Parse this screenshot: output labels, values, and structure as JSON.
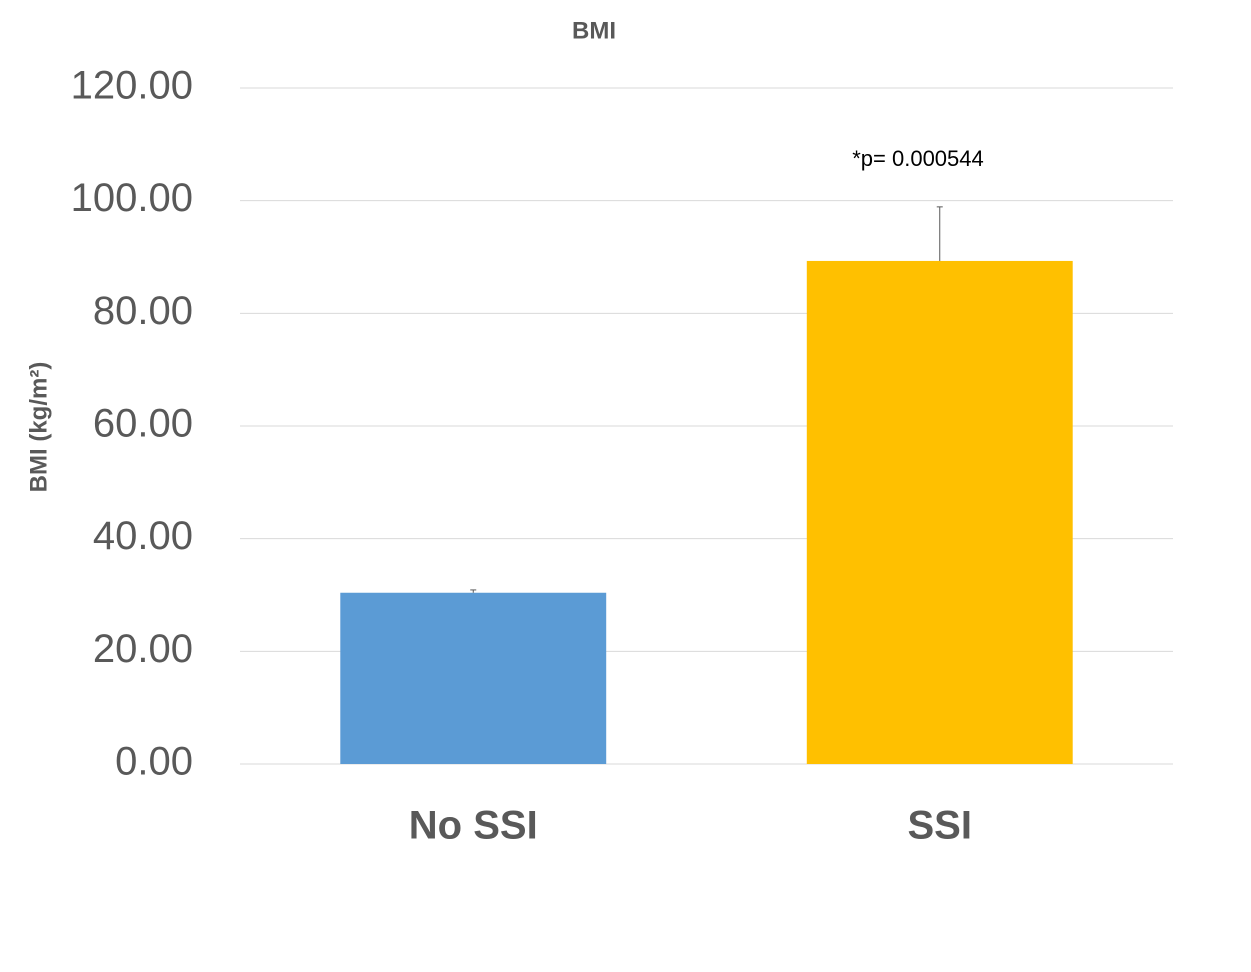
{
  "chart_data": {
    "type": "bar",
    "title": "BMI",
    "y_label": "BMI (kg/m²)",
    "categories": [
      "No SSI",
      "SSI"
    ],
    "values": [
      30.4,
      89.3
    ],
    "errors": [
      0.5,
      9.6
    ],
    "colors": [
      "#5b9bd5",
      "#ffc000"
    ],
    "annotation": "*p= 0.000544",
    "ylim": [
      0,
      120
    ],
    "yticks": [
      {
        "value": 0,
        "label": "0.00"
      },
      {
        "value": 20,
        "label": "20.00"
      },
      {
        "value": 40,
        "label": "40.00"
      },
      {
        "value": 60,
        "label": "60.00"
      },
      {
        "value": 80,
        "label": "80.00"
      },
      {
        "value": 100,
        "label": "100.00"
      },
      {
        "value": 120,
        "label": "120.00"
      }
    ],
    "grid": true
  }
}
